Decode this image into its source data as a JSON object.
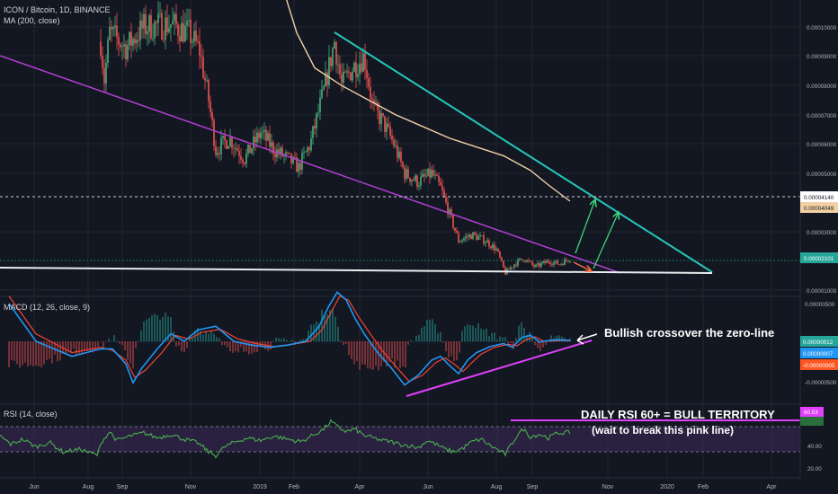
{
  "colors": {
    "background": "#131722",
    "grid": "#1f2430",
    "candle_up": "#4caf7d",
    "candle_down": "#ef5350",
    "ma": "#f2d0a4",
    "upper_trend": "#26c6b8",
    "support_line": "#e9edf0",
    "purple_line": "#b040d0",
    "green_arrow": "#3fd47a",
    "orange_arrow": "#ff7043",
    "macd_line": "#2196f3",
    "signal_line": "#f44336",
    "hist_pos": "#26a69a",
    "hist_neg": "#ef5350",
    "rsi_line": "#4caf50",
    "rsi_band": "#3c2a58",
    "pink_line": "#e040fb",
    "text": "#b2b5be"
  },
  "header": {
    "title": "ICON / Bitcoin, 1D, BINANCE",
    "ma_label": "MA (200, close)"
  },
  "macd_panel": {
    "label": "MACD (12, 26, close, 9)"
  },
  "rsi_panel": {
    "label": "RSI (14, close)"
  },
  "annotations": {
    "macd_note": "Bullish crossover the zero-line",
    "rsi_note_1": "DAILY RSI 60+ = BULL TERRITORY",
    "rsi_note_2": "(wait to break this pink line)"
  },
  "chart_data": [
    {
      "type": "candlestick",
      "panel": "price",
      "title": "ICON / Bitcoin, 1D, BINANCE",
      "x_ticks": [
        "Jun",
        "Aug",
        "Sep",
        "Nov",
        "2019",
        "Feb",
        "Apr",
        "Jun",
        "Aug",
        "Sep",
        "Nov",
        "2020",
        "Feb",
        "Apr"
      ],
      "y_ticks": [
        "0.00010000",
        "0.00009000",
        "0.00008000",
        "0.00007000",
        "0.00006000",
        "0.00005000",
        "0.00003000",
        "0.00001000"
      ],
      "y_range": [
        8e-07,
        1.1e-05
      ],
      "price_labels": [
        {
          "value": "0.00004140",
          "kind": "horizontal-line"
        },
        {
          "value": "0.00004049",
          "kind": "ma"
        },
        {
          "value": "0.00002101",
          "kind": "last-price"
        }
      ],
      "close_anchors": [
        {
          "x": 112,
          "v": 9.5e-06
        },
        {
          "x": 116,
          "v": 8.2e-06
        },
        {
          "x": 122,
          "v": 9.8e-06
        },
        {
          "x": 140,
          "v": 9.3e-06
        },
        {
          "x": 160,
          "v": 1e-05
        },
        {
          "x": 190,
          "v": 1.01e-05
        },
        {
          "x": 210,
          "v": 9.8e-06
        },
        {
          "x": 222,
          "v": 9.2e-06
        },
        {
          "x": 232,
          "v": 7.5e-06
        },
        {
          "x": 240,
          "v": 5.8e-06
        },
        {
          "x": 255,
          "v": 6.2e-06
        },
        {
          "x": 272,
          "v": 5.5e-06
        },
        {
          "x": 290,
          "v": 6.4e-06
        },
        {
          "x": 305,
          "v": 5.8e-06
        },
        {
          "x": 320,
          "v": 5.5e-06
        },
        {
          "x": 332,
          "v": 5.2e-06
        },
        {
          "x": 345,
          "v": 6e-06
        },
        {
          "x": 360,
          "v": 7.8e-06
        },
        {
          "x": 372,
          "v": 9.5e-06
        },
        {
          "x": 380,
          "v": 8e-06
        },
        {
          "x": 392,
          "v": 8.6e-06
        },
        {
          "x": 405,
          "v": 9e-06
        },
        {
          "x": 415,
          "v": 7.2e-06
        },
        {
          "x": 425,
          "v": 6.8e-06
        },
        {
          "x": 438,
          "v": 6e-06
        },
        {
          "x": 450,
          "v": 5e-06
        },
        {
          "x": 465,
          "v": 4.7e-06
        },
        {
          "x": 480,
          "v": 5e-06
        },
        {
          "x": 490,
          "v": 4.5e-06
        },
        {
          "x": 500,
          "v": 3.6e-06
        },
        {
          "x": 510,
          "v": 2.7e-06
        },
        {
          "x": 525,
          "v": 2.9e-06
        },
        {
          "x": 540,
          "v": 2.7e-06
        },
        {
          "x": 552,
          "v": 2.4e-06
        },
        {
          "x": 562,
          "v": 1.6e-06
        },
        {
          "x": 572,
          "v": 1.9e-06
        },
        {
          "x": 582,
          "v": 2.1e-06
        },
        {
          "x": 595,
          "v": 1.8e-06
        },
        {
          "x": 610,
          "v": 2e-06
        },
        {
          "x": 622,
          "v": 1.9e-06
        },
        {
          "x": 634,
          "v": 2.1e-06
        }
      ],
      "ma200": [
        {
          "x": 318,
          "v": 1.1e-05
        },
        {
          "x": 330,
          "v": 9.8e-06
        },
        {
          "x": 350,
          "v": 8.6e-06
        },
        {
          "x": 380,
          "v": 8e-06
        },
        {
          "x": 410,
          "v": 7.5e-06
        },
        {
          "x": 440,
          "v": 7e-06
        },
        {
          "x": 470,
          "v": 6.6e-06
        },
        {
          "x": 500,
          "v": 6.2e-06
        },
        {
          "x": 530,
          "v": 5.9e-06
        },
        {
          "x": 560,
          "v": 5.6e-06
        },
        {
          "x": 590,
          "v": 5.1e-06
        },
        {
          "x": 610,
          "v": 4.6e-06
        },
        {
          "x": 634,
          "v": 4.05e-06
        }
      ]
    },
    {
      "type": "line",
      "panel": "macd",
      "title": "MACD (12, 26, close, 9)",
      "y_ticks": [
        "0.00000500",
        "-0.00000500"
      ],
      "value_labels": [
        "0.00000012",
        "0.00000007",
        "-0.00000005"
      ],
      "macd_anchors": [
        [
          10,
          5
        ],
        [
          40,
          0
        ],
        [
          80,
          -2
        ],
        [
          112,
          -1
        ],
        [
          125,
          -1
        ],
        [
          140,
          -3
        ],
        [
          148,
          -5.5
        ],
        [
          158,
          -3.5
        ],
        [
          175,
          -1
        ],
        [
          190,
          1
        ],
        [
          205,
          0
        ],
        [
          220,
          1.5
        ],
        [
          240,
          2
        ],
        [
          260,
          0
        ],
        [
          280,
          -0.5
        ],
        [
          300,
          -0.8
        ],
        [
          320,
          -0.5
        ],
        [
          340,
          0
        ],
        [
          355,
          2
        ],
        [
          365,
          4.5
        ],
        [
          375,
          6.5
        ],
        [
          385,
          5.5
        ],
        [
          395,
          3
        ],
        [
          405,
          1
        ],
        [
          420,
          -1.5
        ],
        [
          435,
          -3.5
        ],
        [
          450,
          -5.8
        ],
        [
          465,
          -4.5
        ],
        [
          480,
          -2.5
        ],
        [
          490,
          -2
        ],
        [
          500,
          -3.2
        ],
        [
          510,
          -4.3
        ],
        [
          520,
          -2.5
        ],
        [
          530,
          -1.5
        ],
        [
          545,
          -0.7
        ],
        [
          560,
          -0.3
        ],
        [
          570,
          -0.8
        ],
        [
          580,
          0.5
        ],
        [
          590,
          0.8
        ],
        [
          600,
          -0.1
        ],
        [
          610,
          0.1
        ],
        [
          620,
          0.2
        ],
        [
          634,
          0.12
        ]
      ],
      "signal_anchors": [
        [
          10,
          6
        ],
        [
          40,
          1
        ],
        [
          80,
          -1.5
        ],
        [
          112,
          -0.8
        ],
        [
          125,
          -1.2
        ],
        [
          140,
          -2.5
        ],
        [
          150,
          -4.8
        ],
        [
          162,
          -3.8
        ],
        [
          180,
          -1.5
        ],
        [
          195,
          0.8
        ],
        [
          210,
          0.3
        ],
        [
          225,
          1.2
        ],
        [
          245,
          1.6
        ],
        [
          265,
          0.3
        ],
        [
          285,
          -0.3
        ],
        [
          305,
          -0.7
        ],
        [
          325,
          -0.4
        ],
        [
          345,
          0
        ],
        [
          358,
          1.5
        ],
        [
          368,
          3.8
        ],
        [
          378,
          6
        ],
        [
          388,
          5.4
        ],
        [
          398,
          3.4
        ],
        [
          410,
          1.3
        ],
        [
          425,
          -1.2
        ],
        [
          440,
          -3.3
        ],
        [
          455,
          -5.3
        ],
        [
          470,
          -4.5
        ],
        [
          485,
          -2.8
        ],
        [
          495,
          -2.2
        ],
        [
          505,
          -3
        ],
        [
          515,
          -4
        ],
        [
          525,
          -2.8
        ],
        [
          535,
          -1.7
        ],
        [
          550,
          -0.8
        ],
        [
          565,
          -0.4
        ],
        [
          575,
          -0.6
        ],
        [
          585,
          0.2
        ],
        [
          595,
          0.6
        ],
        [
          605,
          0
        ],
        [
          615,
          0.05
        ],
        [
          625,
          0.1
        ],
        [
          634,
          0.07
        ]
      ]
    },
    {
      "type": "line",
      "panel": "rsi",
      "title": "RSI (14, close)",
      "y_ticks": [
        "40.00",
        "20.00"
      ],
      "value_labels": [
        "60.53"
      ],
      "band": [
        30,
        70
      ],
      "rsi_anchors": [
        [
          0,
          55
        ],
        [
          12,
          42
        ],
        [
          25,
          50
        ],
        [
          40,
          38
        ],
        [
          55,
          45
        ],
        [
          70,
          30
        ],
        [
          90,
          34
        ],
        [
          100,
          28
        ],
        [
          108,
          25
        ],
        [
          114,
          48
        ],
        [
          122,
          62
        ],
        [
          130,
          48
        ],
        [
          145,
          55
        ],
        [
          160,
          60
        ],
        [
          175,
          52
        ],
        [
          190,
          58
        ],
        [
          205,
          50
        ],
        [
          220,
          44
        ],
        [
          232,
          30
        ],
        [
          240,
          24
        ],
        [
          250,
          38
        ],
        [
          262,
          46
        ],
        [
          275,
          52
        ],
        [
          290,
          48
        ],
        [
          305,
          55
        ],
        [
          320,
          50
        ],
        [
          335,
          46
        ],
        [
          350,
          58
        ],
        [
          360,
          66
        ],
        [
          368,
          78
        ],
        [
          375,
          70
        ],
        [
          385,
          62
        ],
        [
          395,
          66
        ],
        [
          405,
          56
        ],
        [
          415,
          52
        ],
        [
          425,
          48
        ],
        [
          435,
          46
        ],
        [
          445,
          42
        ],
        [
          455,
          40
        ],
        [
          465,
          36
        ],
        [
          475,
          48
        ],
        [
          485,
          42
        ],
        [
          495,
          34
        ],
        [
          505,
          30
        ],
        [
          515,
          36
        ],
        [
          525,
          46
        ],
        [
          535,
          50
        ],
        [
          545,
          40
        ],
        [
          555,
          32
        ],
        [
          562,
          26
        ],
        [
          568,
          40
        ],
        [
          575,
          56
        ],
        [
          582,
          66
        ],
        [
          590,
          54
        ],
        [
          600,
          58
        ],
        [
          610,
          52
        ],
        [
          620,
          60
        ],
        [
          634,
          60.5
        ]
      ]
    }
  ]
}
